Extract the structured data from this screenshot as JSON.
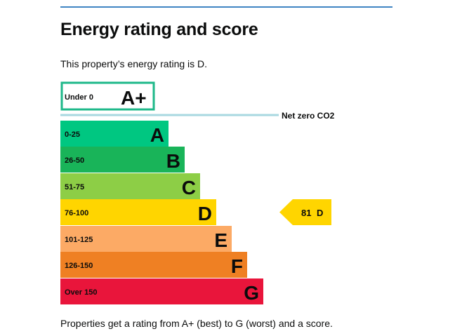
{
  "heading": "Energy rating and score",
  "intro_text": "This property’s energy rating is D.",
  "footer_text": "Properties get a rating from A+ (best) to G (worst) and a score.",
  "colors": {
    "accent_rule": "#1d70b8",
    "a_plus_border": "#00b276",
    "net_zero_line": "#a8d8e0"
  },
  "chart_data": {
    "type": "bar",
    "bands": [
      {
        "range": "Under 0",
        "letter": "A+",
        "color": "#ffffff",
        "outlined": true,
        "border": "#1eb88a"
      },
      {
        "range": "0-25",
        "letter": "A",
        "color": "#00c781"
      },
      {
        "range": "26-50",
        "letter": "B",
        "color": "#19b459"
      },
      {
        "range": "51-75",
        "letter": "C",
        "color": "#8dce46"
      },
      {
        "range": "76-100",
        "letter": "D",
        "color": "#ffd500"
      },
      {
        "range": "101-125",
        "letter": "E",
        "color": "#fcaa65"
      },
      {
        "range": "126-150",
        "letter": "F",
        "color": "#ef8023"
      },
      {
        "range": "Over 150",
        "letter": "G",
        "color": "#e9153b"
      }
    ],
    "net_zero_label": "Net zero CO2",
    "current": {
      "score": "81",
      "letter": "D",
      "band_index": 4,
      "color": "#ffd500"
    }
  }
}
